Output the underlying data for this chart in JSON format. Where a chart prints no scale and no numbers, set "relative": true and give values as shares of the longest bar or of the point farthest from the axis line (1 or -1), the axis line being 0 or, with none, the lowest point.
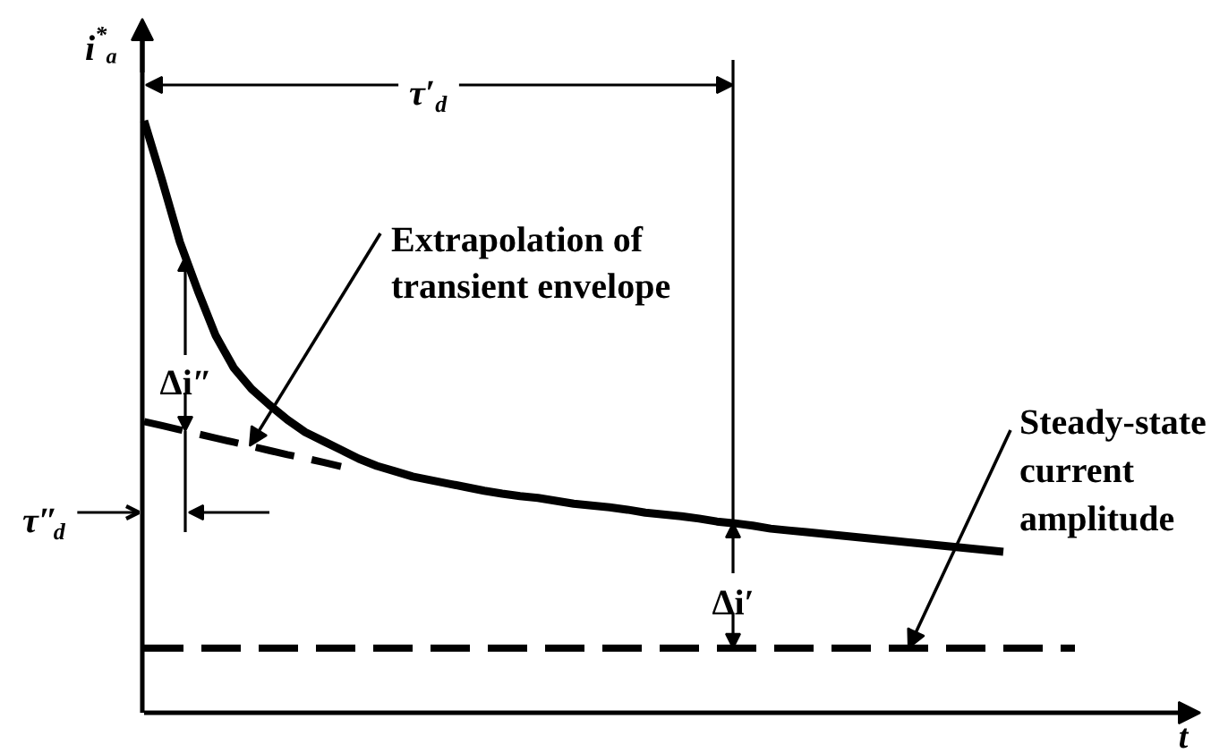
{
  "chart_data": {
    "type": "line",
    "relative": true,
    "xlabel": "t",
    "ylabel": "i$^{*}$ₐ",
    "line_style": "solid",
    "categories": [
      null,
      null,
      null,
      null,
      null,
      null,
      null,
      null,
      null,
      null,
      null,
      null,
      null,
      null,
      null,
      null,
      null,
      null,
      null,
      null,
      null,
      null,
      null,
      null,
      null,
      null,
      null,
      null,
      null,
      null,
      null,
      null,
      null,
      null,
      null,
      null,
      null,
      null,
      null,
      null,
      null,
      null,
      null,
      null,
      null,
      null,
      null,
      null,
      null,
      null,
      null,
      null,
      null
    ],
    "series": [
      {
        "color": "#000000",
        "values": [
          1.0,
          0.9,
          0.795,
          0.713,
          0.637,
          0.583,
          0.547,
          0.52,
          0.495,
          0.474,
          0.459,
          0.444,
          0.429,
          0.417,
          0.408,
          0.399,
          0.393,
          0.387,
          0.381,
          0.375,
          0.37,
          0.366,
          0.363,
          0.358,
          0.353,
          0.35,
          0.347,
          0.343,
          0.338,
          0.335,
          0.332,
          0.328,
          0.323,
          0.32,
          0.316,
          0.311,
          0.308,
          0.305,
          0.302,
          0.299,
          0.296,
          0.293,
          0.29,
          0.287,
          0.284,
          0.281,
          0.278,
          0.275,
          0.272,
          null,
          null,
          null,
          null
        ]
      },
      {
        "color": "#000000",
        "line_style": "dashed",
        "values": [
          0.492,
          0.485,
          0.478,
          0.471,
          0.464,
          0.457,
          0.45,
          0.443,
          0.436,
          0.43,
          0.423,
          0.416,
          null,
          null,
          null,
          null,
          null,
          null,
          null,
          null,
          null,
          null,
          null,
          null,
          null,
          null,
          null,
          null,
          null,
          null,
          null,
          null,
          null,
          null,
          null,
          null,
          null,
          null,
          null,
          null,
          null,
          null,
          null,
          null,
          null,
          null,
          null,
          null,
          null,
          null,
          null,
          null,
          null
        ]
      },
      {
        "color": "#000000",
        "line_style": "dashed",
        "values": [
          0.109,
          0.109,
          0.109,
          0.109,
          0.109,
          0.109,
          0.109,
          0.109,
          0.109,
          0.109,
          0.109,
          0.109,
          0.109,
          0.109,
          0.109,
          0.109,
          0.109,
          0.109,
          0.109,
          0.109,
          0.109,
          0.109,
          0.109,
          0.109,
          0.109,
          0.109,
          0.109,
          0.109,
          0.109,
          0.109,
          0.109,
          0.109,
          0.109,
          0.109,
          0.109,
          0.109,
          0.109,
          0.109,
          0.109,
          0.109,
          0.109,
          0.109,
          0.109,
          0.109,
          0.109,
          0.109,
          0.109,
          0.109,
          0.109,
          0.109,
          0.109,
          0.109,
          0.109
        ]
      }
    ],
    "annotations": [
      "τ′$_{d}$",
      "Extrapolation of transient envelope",
      "Δi″",
      "τ″$_{d}$",
      "Δi′",
      "Steady-state current amplitude"
    ]
  }
}
